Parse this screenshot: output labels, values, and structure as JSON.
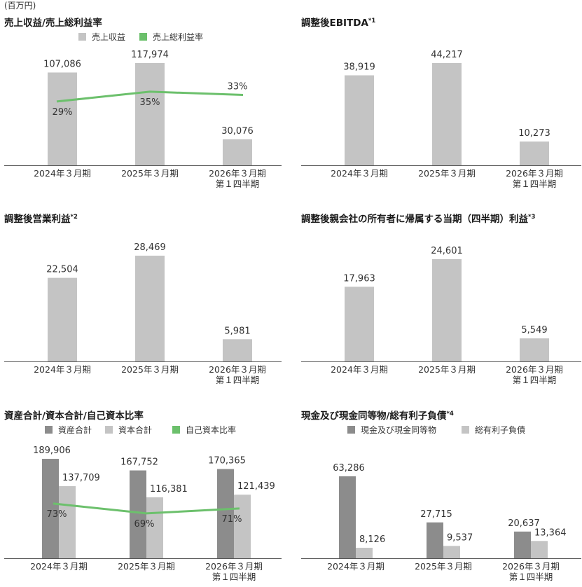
{
  "unit_label": "(百万円)",
  "x_categories": [
    [
      "2024年３月期"
    ],
    [
      "2025年３月期"
    ],
    [
      "2026年３月期",
      "第１四半期"
    ]
  ],
  "colors": {
    "bar_light": "#c4c4c4",
    "bar_dark": "#8c8c8c",
    "line_green": "#6cc06c",
    "axis": "#555555"
  },
  "chart_data": [
    {
      "type": "bar",
      "title": "売上収益/売上総利益率",
      "note": "",
      "legend": [
        {
          "label": "売上収益",
          "kind": "bar_light"
        },
        {
          "label": "売上総利益率",
          "kind": "line_green"
        }
      ],
      "series": [
        {
          "name": "売上収益",
          "values": [
            107086,
            117974,
            30076
          ],
          "labels": [
            "107,086",
            "117,974",
            "30,076"
          ]
        }
      ],
      "line": {
        "name": "売上総利益率",
        "values": [
          29,
          35,
          33
        ],
        "labels": [
          "29%",
          "35%",
          "33%"
        ]
      }
    },
    {
      "type": "bar",
      "title": "調整後EBITDA",
      "note": "*1",
      "series": [
        {
          "name": "調整後EBITDA",
          "values": [
            38919,
            44217,
            10273
          ],
          "labels": [
            "38,919",
            "44,217",
            "10,273"
          ]
        }
      ]
    },
    {
      "type": "bar",
      "title": "調整後営業利益",
      "note": "*2",
      "series": [
        {
          "name": "調整後営業利益",
          "values": [
            22504,
            28469,
            5981
          ],
          "labels": [
            "22,504",
            "28,469",
            "5,981"
          ]
        }
      ]
    },
    {
      "type": "bar",
      "title": "調整後親会社の所有者に帰属する当期（四半期）利益",
      "note": "*3",
      "series": [
        {
          "name": "調整後親会社の所有者に帰属する当期（四半期）利益",
          "values": [
            17963,
            24601,
            5549
          ],
          "labels": [
            "17,963",
            "24,601",
            "5,549"
          ]
        }
      ]
    },
    {
      "type": "bar",
      "title": "資産合計/資本合計/自己資本比率",
      "note": "",
      "legend": [
        {
          "label": "資産合計",
          "kind": "bar_dark"
        },
        {
          "label": "資本合計",
          "kind": "bar_light"
        },
        {
          "label": "自己資本比率",
          "kind": "line_green"
        }
      ],
      "series": [
        {
          "name": "資産合計",
          "values": [
            189906,
            167752,
            170365
          ],
          "labels": [
            "189,906",
            "167,752",
            "170,365"
          ]
        },
        {
          "name": "資本合計",
          "values": [
            137709,
            116381,
            121439
          ],
          "labels": [
            "137,709",
            "116,381",
            "121,439"
          ]
        }
      ],
      "line": {
        "name": "自己資本比率",
        "values": [
          73,
          69,
          71
        ],
        "labels": [
          "73%",
          "69%",
          "71%"
        ]
      }
    },
    {
      "type": "bar",
      "title": "現金及び現金同等物/総有利子負債",
      "note": "*4",
      "legend": [
        {
          "label": "現金及び現金同等物",
          "kind": "bar_dark"
        },
        {
          "label": "総有利子負債",
          "kind": "bar_light"
        }
      ],
      "series": [
        {
          "name": "現金及び現金同等物",
          "values": [
            63286,
            27715,
            20637
          ],
          "labels": [
            "63,286",
            "27,715",
            "20,637"
          ]
        },
        {
          "name": "総有利子負債",
          "values": [
            8126,
            9537,
            13364
          ],
          "labels": [
            "8,126",
            "9,537",
            "13,364"
          ]
        }
      ]
    }
  ]
}
